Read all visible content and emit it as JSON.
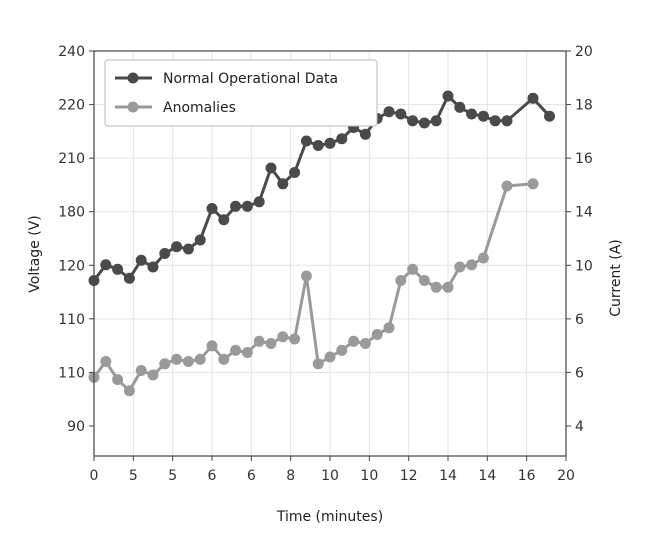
{
  "chart_data": {
    "type": "line",
    "title": "",
    "xlabel": "Time (minutes)",
    "ylabel_left": "Voltage (V)",
    "ylabel_right": "Current (A)",
    "x_tick_labels": [
      "0",
      "5",
      "5",
      "6",
      "6",
      "8",
      "10",
      "10",
      "12",
      "14",
      "14",
      "16",
      "20"
    ],
    "left_tick_labels": [
      "90",
      "110",
      "110",
      "120",
      "180",
      "210",
      "220",
      "240"
    ],
    "right_tick_labels": [
      "4",
      "6",
      "6",
      "10",
      "14",
      "16",
      "18",
      "20"
    ],
    "x_index_range": [
      0,
      20
    ],
    "right_axis_range": [
      2,
      20
    ],
    "grid": true,
    "legend_position": "top-left",
    "series": [
      {
        "name": "Normal Operational Data",
        "color": "#4a4a4a",
        "axis": "right",
        "x": [
          0,
          0.5,
          1,
          1.5,
          2,
          2.5,
          3,
          3.5,
          4,
          4.5,
          5,
          5.5,
          6,
          6.5,
          7,
          7.5,
          8,
          8.5,
          9,
          9.5,
          10,
          10.5,
          11,
          11.5,
          12,
          12.5,
          13,
          13.5,
          14,
          14.5,
          15,
          15.5,
          16,
          16.5,
          17,
          17.5,
          18.6,
          19.3
        ],
        "values": [
          9.8,
          10.5,
          10.3,
          9.9,
          10.7,
          10.4,
          11.0,
          11.3,
          11.2,
          11.6,
          13.0,
          12.5,
          13.1,
          13.1,
          13.3,
          14.8,
          14.1,
          14.6,
          16.0,
          15.8,
          15.9,
          16.1,
          16.6,
          16.3,
          17.0,
          17.3,
          17.2,
          16.9,
          16.8,
          16.9,
          18.0,
          17.5,
          17.2,
          17.1,
          16.9,
          16.9,
          17.9,
          17.1
        ]
      },
      {
        "name": "Anomalies",
        "color": "#9a9a9a",
        "axis": "right",
        "x": [
          0,
          0.5,
          1,
          1.5,
          2,
          2.5,
          3,
          3.5,
          4,
          4.5,
          5,
          5.5,
          6,
          6.5,
          7,
          7.5,
          8,
          8.5,
          9,
          9.5,
          10,
          10.5,
          11,
          11.5,
          12,
          12.5,
          13,
          13.5,
          14,
          14.5,
          15,
          15.5,
          16,
          16.5,
          17.5,
          18.6
        ],
        "values": [
          5.5,
          6.2,
          5.4,
          4.9,
          5.8,
          5.6,
          6.1,
          6.3,
          6.2,
          6.3,
          6.9,
          6.3,
          6.7,
          6.6,
          7.1,
          7.0,
          7.3,
          7.2,
          10.0,
          6.1,
          6.4,
          6.7,
          7.1,
          7.0,
          7.4,
          7.7,
          9.8,
          10.3,
          9.8,
          9.5,
          9.5,
          10.4,
          10.5,
          10.8,
          14.0,
          14.1
        ]
      }
    ]
  }
}
